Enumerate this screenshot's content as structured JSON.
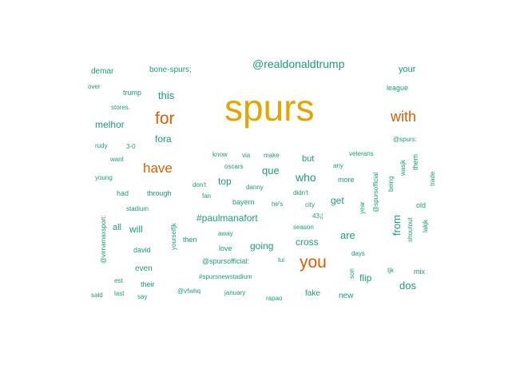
{
  "colors": {
    "large": "#e6a400",
    "medium": "#d95f02",
    "small": "#1b9e77"
  },
  "words": [
    {
      "text": "spurs",
      "tier": "large"
    },
    {
      "text": "for",
      "tier": "medium"
    },
    {
      "text": "with",
      "tier": "medium"
    },
    {
      "text": "have",
      "tier": "medium"
    },
    {
      "text": "you",
      "tier": "medium"
    },
    {
      "text": "@realdonaldtrump",
      "tier": "small"
    },
    {
      "text": "demar",
      "tier": "small"
    },
    {
      "text": "bone-spurs;",
      "tier": "small"
    },
    {
      "text": "your",
      "tier": "small"
    },
    {
      "text": "over",
      "tier": "small"
    },
    {
      "text": "trump",
      "tier": "small"
    },
    {
      "text": "this",
      "tier": "small"
    },
    {
      "text": "league",
      "tier": "small"
    },
    {
      "text": "stores.",
      "tier": "small"
    },
    {
      "text": "melhor",
      "tier": "small"
    },
    {
      "text": "fora",
      "tier": "small"
    },
    {
      "text": "@spurs:",
      "tier": "small"
    },
    {
      "text": "rudy",
      "tier": "small"
    },
    {
      "text": "3-0",
      "tier": "small"
    },
    {
      "text": "know",
      "tier": "small"
    },
    {
      "text": "via",
      "tier": "small"
    },
    {
      "text": "make",
      "tier": "small"
    },
    {
      "text": "but",
      "tier": "small"
    },
    {
      "text": "veterans",
      "tier": "small"
    },
    {
      "text": "want",
      "tier": "small"
    },
    {
      "text": "oscars",
      "tier": "small"
    },
    {
      "text": "que",
      "tier": "small"
    },
    {
      "text": "any",
      "tier": "small"
    },
    {
      "text": "wasjk",
      "tier": "small"
    },
    {
      "text": "them",
      "tier": "small"
    },
    {
      "text": "young",
      "tier": "small"
    },
    {
      "text": "top",
      "tier": "small"
    },
    {
      "text": "who",
      "tier": "small"
    },
    {
      "text": "more",
      "tier": "small"
    },
    {
      "text": "trade",
      "tier": "small"
    },
    {
      "text": "don't",
      "tier": "small"
    },
    {
      "text": "danny",
      "tier": "small"
    },
    {
      "text": "had",
      "tier": "small"
    },
    {
      "text": "through",
      "tier": "small"
    },
    {
      "text": "fan",
      "tier": "small"
    },
    {
      "text": "didn't",
      "tier": "small"
    },
    {
      "text": "@spursofficial",
      "tier": "small"
    },
    {
      "text": "being",
      "tier": "small"
    },
    {
      "text": "bayern",
      "tier": "small"
    },
    {
      "text": "he's",
      "tier": "small"
    },
    {
      "text": "city",
      "tier": "small"
    },
    {
      "text": "get",
      "tier": "small"
    },
    {
      "text": "old",
      "tier": "small"
    },
    {
      "text": "stadium",
      "tier": "small"
    },
    {
      "text": "year",
      "tier": "small"
    },
    {
      "text": "#paulmanafort",
      "tier": "small"
    },
    {
      "text": "43¡¦",
      "tier": "small"
    },
    {
      "text": "@virnamaxsport:",
      "tier": "small"
    },
    {
      "text": "all",
      "tier": "small"
    },
    {
      "text": "will",
      "tier": "small"
    },
    {
      "text": "season",
      "tier": "small"
    },
    {
      "text": "from",
      "tier": "small"
    },
    {
      "text": "shoutout",
      "tier": "small"
    },
    {
      "text": "lakjk",
      "tier": "small"
    },
    {
      "text": "yourselfjk",
      "tier": "small"
    },
    {
      "text": "away",
      "tier": "small"
    },
    {
      "text": "are",
      "tier": "small"
    },
    {
      "text": "then",
      "tier": "small"
    },
    {
      "text": "going",
      "tier": "small"
    },
    {
      "text": "cross",
      "tier": "small"
    },
    {
      "text": "david",
      "tier": "small"
    },
    {
      "text": "love",
      "tier": "small"
    },
    {
      "text": "days",
      "tier": "small"
    },
    {
      "text": "@spursofficial:",
      "tier": "small"
    },
    {
      "text": "lui",
      "tier": "small"
    },
    {
      "text": "even",
      "tier": "small"
    },
    {
      "text": "tjk",
      "tier": "small"
    },
    {
      "text": "mix",
      "tier": "small"
    },
    {
      "text": "#spursnewstadium",
      "tier": "small"
    },
    {
      "text": "son",
      "tier": "small"
    },
    {
      "text": "flip",
      "tier": "small"
    },
    {
      "text": "est",
      "tier": "small"
    },
    {
      "text": "their",
      "tier": "small"
    },
    {
      "text": "dos",
      "tier": "small"
    },
    {
      "text": "@vfwhq",
      "tier": "small"
    },
    {
      "text": "january",
      "tier": "small"
    },
    {
      "text": "fake",
      "tier": "small"
    },
    {
      "text": "said",
      "tier": "small"
    },
    {
      "text": "last",
      "tier": "small"
    },
    {
      "text": "say",
      "tier": "small"
    },
    {
      "text": "rapao",
      "tier": "small"
    },
    {
      "text": "new",
      "tier": "small"
    }
  ]
}
